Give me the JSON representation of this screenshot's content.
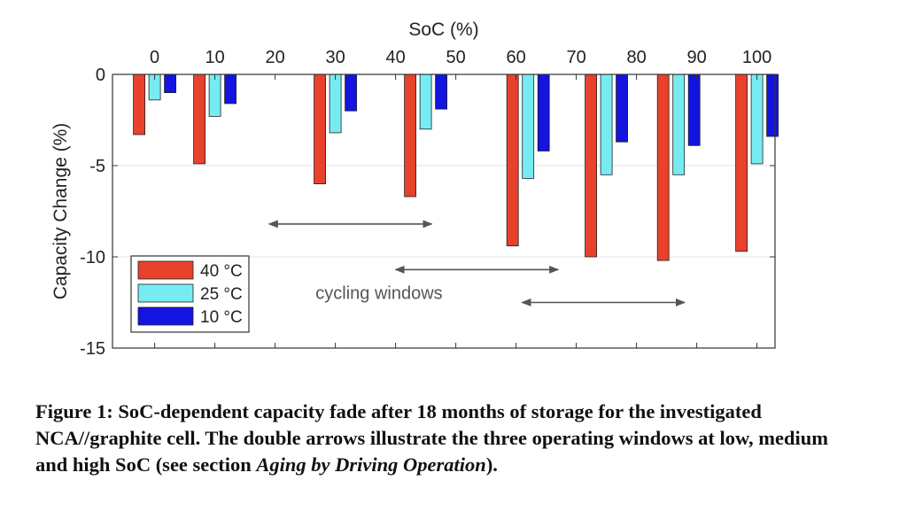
{
  "chart_data": {
    "type": "bar",
    "xlabel": "SoC (%)",
    "ylabel": "Capacity Change (%)",
    "ylim": [
      -15,
      0
    ],
    "yticks": [
      0,
      -5,
      -10,
      -15
    ],
    "xlim": [
      -7,
      103
    ],
    "xticks": [
      0,
      10,
      20,
      30,
      40,
      50,
      60,
      70,
      80,
      90,
      100
    ],
    "x_axis_position": "top",
    "grid": "horizontal",
    "legend_position": "bottom-left",
    "categories": [
      0,
      10,
      30,
      45,
      62,
      75,
      87,
      100
    ],
    "series": [
      {
        "name": "40 °C",
        "color": "#e8412c",
        "values": [
          -3.3,
          -4.9,
          -6.0,
          -6.7,
          -9.4,
          -10.0,
          -10.2,
          -9.7
        ]
      },
      {
        "name": "25 °C",
        "color": "#76ecf2",
        "values": [
          -1.4,
          -2.3,
          -3.2,
          -3.0,
          -5.7,
          -5.5,
          -5.5,
          -4.9
        ]
      },
      {
        "name": "10 °C",
        "color": "#1414e0",
        "values": [
          -1.0,
          -1.6,
          -2.0,
          -1.9,
          -4.2,
          -3.7,
          -3.9,
          -3.4
        ]
      }
    ],
    "annotations": {
      "text": "cycling windows",
      "arrows": [
        {
          "from_soc": 19,
          "to_soc": 46,
          "at_value": -8.2
        },
        {
          "from_soc": 40,
          "to_soc": 67,
          "at_value": -10.7
        },
        {
          "from_soc": 61,
          "to_soc": 88,
          "at_value": -12.5
        }
      ]
    }
  },
  "caption": {
    "label": "Figure 1:",
    "text": " SoC-dependent capacity fade after 18 months of storage for the investigated NCA//graphite cell. The double arrows illustrate the three operating windows at low, medium and high SoC (see section ",
    "section": "Aging by Driving Operation",
    "end": ")."
  }
}
